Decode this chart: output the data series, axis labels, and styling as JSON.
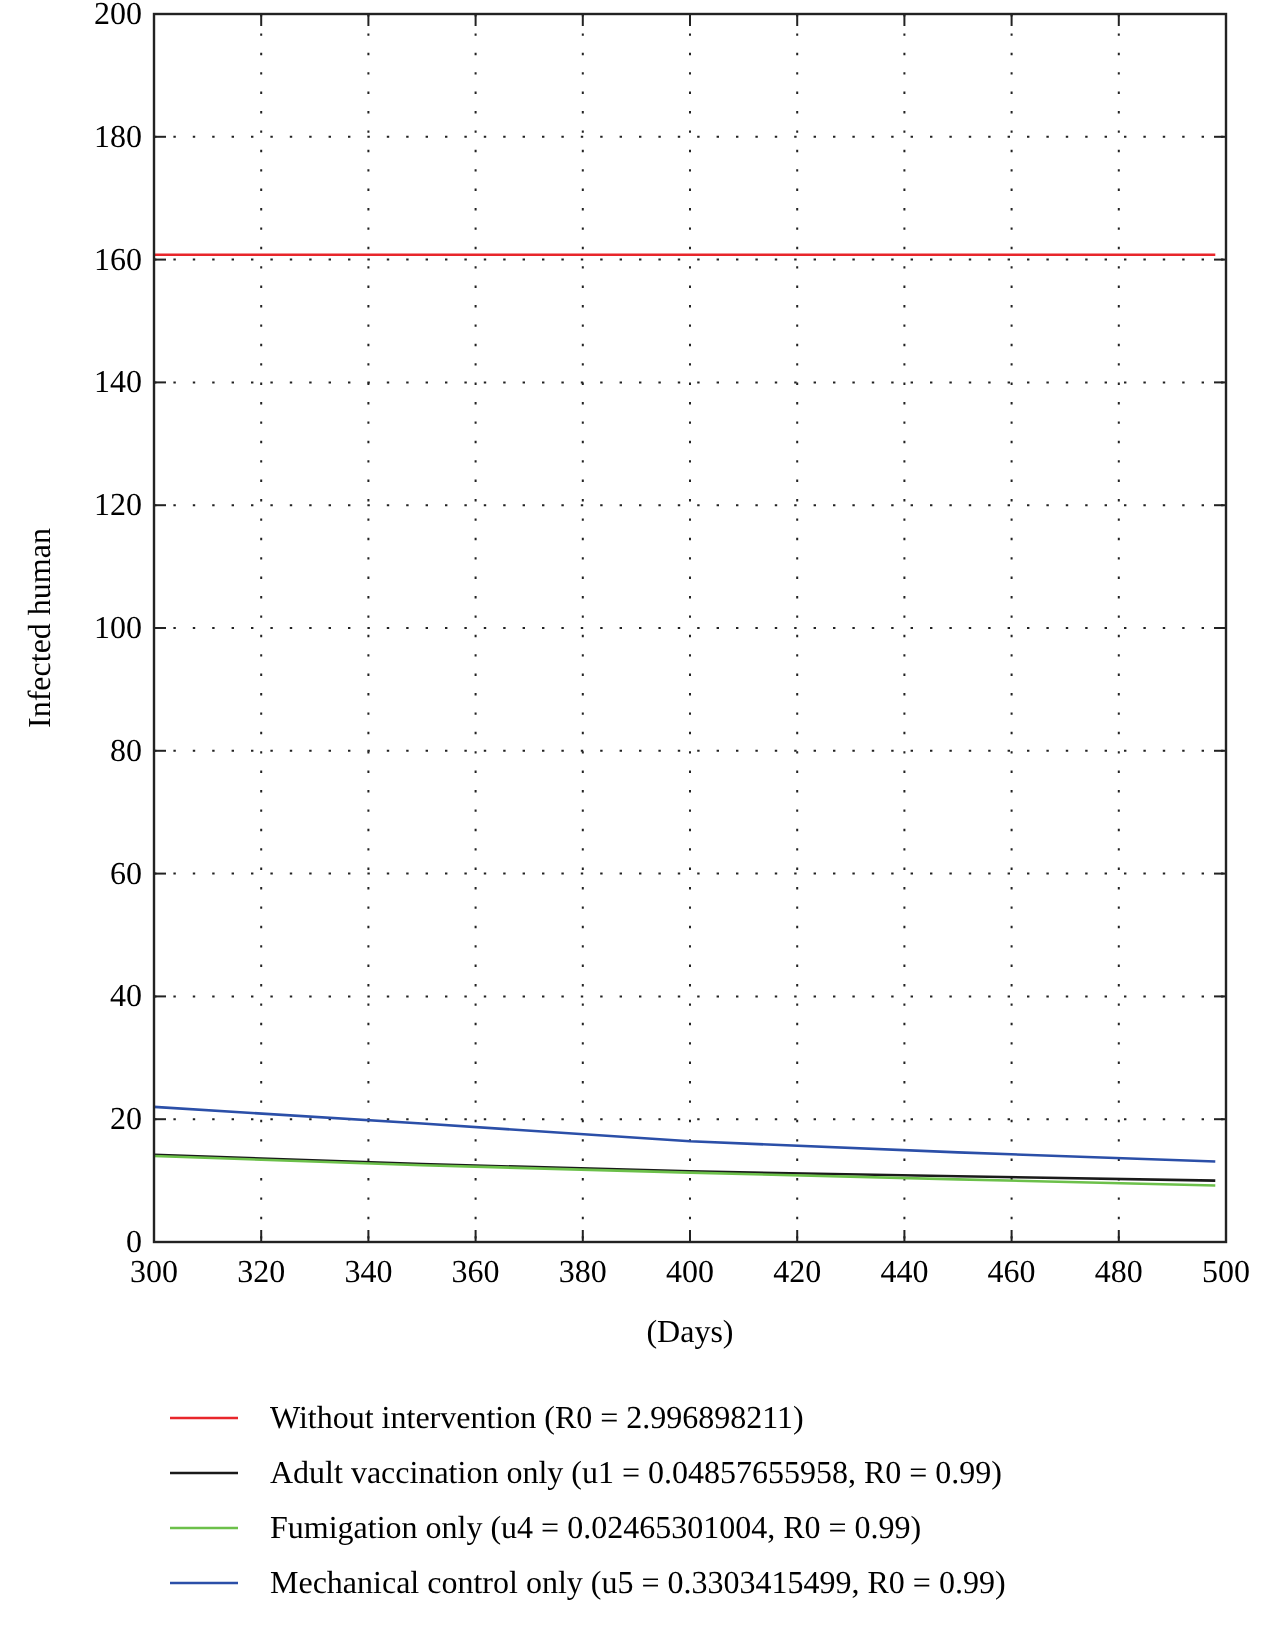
{
  "chart_data": {
    "type": "line",
    "xlabel": "(Days)",
    "ylabel": "Infected human",
    "xlim": [
      300,
      500
    ],
    "ylim": [
      0,
      200
    ],
    "xticks": [
      300,
      320,
      340,
      360,
      380,
      400,
      420,
      440,
      460,
      480,
      500
    ],
    "yticks": [
      0,
      20,
      40,
      60,
      80,
      100,
      120,
      140,
      160,
      180,
      200
    ],
    "grid": true,
    "legend": "bottom",
    "line_style": "solid",
    "series": [
      {
        "name": "Without intervention (R0 = 2.996898211)",
        "color": "#e8262b",
        "x": [
          300,
          350,
          400,
          450,
          498
        ],
        "values": [
          160.8,
          160.8,
          160.8,
          160.8,
          160.8
        ]
      },
      {
        "name": "Adult vaccination only (u1 = 0.04857655958, R0 = 0.99)",
        "color": "#1a1a1a",
        "x": [
          300,
          350,
          400,
          450,
          498
        ],
        "values": [
          14.2,
          12.7,
          11.5,
          10.7,
          10.0
        ]
      },
      {
        "name": "Fumigation only (u4 = 0.02465301004, R0 = 0.99)",
        "color": "#6cc04a",
        "x": [
          300,
          350,
          400,
          450,
          498
        ],
        "values": [
          14.0,
          12.5,
          11.3,
          10.2,
          9.2
        ]
      },
      {
        "name": "Mechanical control only (u5 = 0.3303415499, R0 = 0.99)",
        "color": "#2b4fa8",
        "x": [
          300,
          350,
          400,
          450,
          498
        ],
        "values": [
          22.0,
          19.3,
          16.4,
          14.6,
          13.1
        ]
      }
    ]
  }
}
